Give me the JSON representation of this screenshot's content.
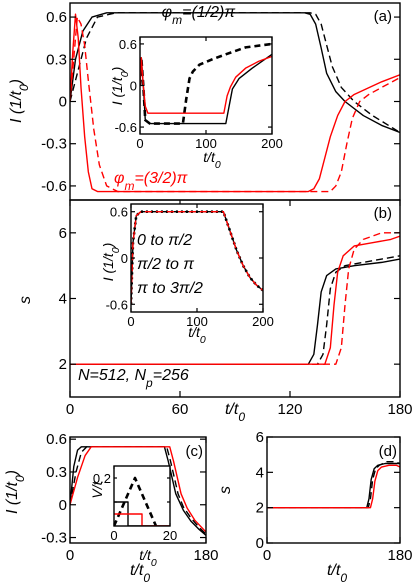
{
  "chart_data": [
    {
      "id": "a",
      "type": "line",
      "panel_label": "(a)",
      "xlim": [
        0,
        180
      ],
      "ylim": [
        -0.7,
        0.7
      ],
      "ylabel": "I (1/t0)",
      "yticks": [
        -0.6,
        -0.3,
        0,
        0.3,
        0.6
      ],
      "ytick_labels": [
        "-0.6",
        "-0.3",
        "0",
        "0.3",
        "0.6"
      ],
      "annotations": [
        {
          "text": "φm=(1/2)π",
          "color": "#000000",
          "x": 50,
          "y": 0.6
        },
        {
          "text": "φm=(3/2)π",
          "color": "#ff0000",
          "x": 24,
          "y": -0.58
        }
      ],
      "series": [
        {
          "color": "#000000",
          "dash": false,
          "x": [
            0,
            3,
            7,
            12,
            20,
            40,
            100,
            128,
            131,
            134,
            137,
            140,
            145,
            150,
            160,
            170,
            180
          ],
          "y": [
            0,
            0.3,
            0.5,
            0.6,
            0.63,
            0.63,
            0.63,
            0.63,
            0.62,
            0.55,
            0.38,
            0.2,
            0.07,
            0,
            -0.1,
            -0.17,
            -0.22
          ]
        },
        {
          "color": "#000000",
          "dash": true,
          "x": [
            0,
            4,
            9,
            15,
            25,
            60,
            100,
            131,
            134,
            137,
            140,
            143,
            148,
            155,
            165,
            180
          ],
          "y": [
            0,
            0.2,
            0.45,
            0.6,
            0.63,
            0.63,
            0.63,
            0.63,
            0.62,
            0.55,
            0.4,
            0.25,
            0.1,
            0,
            -0.1,
            -0.22
          ]
        },
        {
          "color": "#ff0000",
          "dash": false,
          "x": [
            0,
            1.5,
            3,
            4.5,
            6,
            8,
            10,
            12,
            15,
            25,
            60,
            100,
            130,
            133,
            136,
            139,
            142,
            146,
            150,
            155,
            160,
            170,
            180
          ],
          "y": [
            0,
            0.35,
            0.62,
            0.45,
            0.1,
            -0.25,
            -0.5,
            -0.62,
            -0.64,
            -0.64,
            -0.64,
            -0.64,
            -0.64,
            -0.62,
            -0.55,
            -0.4,
            -0.25,
            -0.1,
            0,
            0.05,
            0.08,
            0.14,
            0.19
          ]
        },
        {
          "color": "#ff0000",
          "dash": true,
          "x": [
            0,
            2,
            4,
            6,
            8,
            10,
            13,
            16,
            20,
            26,
            35,
            60,
            100,
            142,
            145,
            148,
            151,
            154,
            158,
            163,
            170,
            180
          ],
          "y": [
            0,
            0.3,
            0.6,
            0.55,
            0.4,
            0.15,
            -0.2,
            -0.45,
            -0.6,
            -0.64,
            -0.64,
            -0.64,
            -0.64,
            -0.64,
            -0.6,
            -0.5,
            -0.3,
            -0.12,
            0,
            0.05,
            0.1,
            0.17
          ]
        }
      ],
      "inset": {
        "xlim": [
          0,
          200
        ],
        "ylim": [
          -0.7,
          0.7
        ],
        "xlabel": "t/t0",
        "ylabel": "I (1/t0)",
        "xticks": [
          0,
          100,
          200
        ],
        "xtick_labels": [
          "0",
          "100",
          "200"
        ],
        "yticks": [
          -0.6,
          0,
          0.6
        ],
        "ytick_labels": [
          "-0.6",
          "0",
          "0.6"
        ],
        "series": [
          {
            "color": "#000000",
            "dash": false,
            "x": [
              0,
              2,
              5,
              8,
              15,
              40,
              100,
              130,
              135,
              140,
              150,
              170,
              200
            ],
            "y": [
              0,
              0.4,
              0.0,
              -0.5,
              -0.55,
              -0.55,
              -0.55,
              -0.55,
              -0.3,
              -0.05,
              0.1,
              0.25,
              0.45
            ]
          },
          {
            "color": "#000000",
            "dash": true,
            "thick": true,
            "x": [
              0,
              2,
              5,
              8,
              15,
              40,
              65,
              70,
              75,
              80,
              90,
              110,
              130,
              160,
              200
            ],
            "y": [
              0,
              0.4,
              0.0,
              -0.5,
              -0.55,
              -0.55,
              -0.55,
              -0.2,
              0.1,
              0.2,
              0.3,
              0.38,
              0.45,
              0.55,
              0.6
            ]
          },
          {
            "color": "#ff0000",
            "dash": false,
            "x": [
              0,
              2,
              5,
              8,
              12,
              40,
              100,
              127,
              132,
              137,
              145,
              160,
              180,
              200
            ],
            "y": [
              0,
              0.4,
              0.0,
              -0.3,
              -0.4,
              -0.4,
              -0.4,
              -0.4,
              -0.15,
              -0.02,
              0.12,
              0.25,
              0.35,
              0.42
            ]
          }
        ]
      }
    },
    {
      "id": "b",
      "type": "line",
      "panel_label": "(b)",
      "xlim": [
        0,
        180
      ],
      "ylim": [
        1,
        7
      ],
      "xlabel": "t/t0",
      "ylabel": "s",
      "xticks": [
        0,
        60,
        120,
        180
      ],
      "xtick_labels": [
        "0",
        "60",
        "120",
        "180"
      ],
      "yticks": [
        2,
        4,
        6
      ],
      "ytick_labels": [
        "2",
        "4",
        "6"
      ],
      "parameters": "N=512, Np=256",
      "series": [
        {
          "color": "#000000",
          "dash": false,
          "x": [
            0,
            130,
            133,
            135,
            137,
            140,
            145,
            155,
            170,
            180
          ],
          "y": [
            2,
            2,
            2.3,
            3.2,
            4.2,
            4.7,
            4.9,
            5,
            5.1,
            5.2
          ]
        },
        {
          "color": "#000000",
          "dash": true,
          "x": [
            0,
            135,
            138,
            140,
            142,
            145,
            150,
            160,
            170,
            180
          ],
          "y": [
            2,
            2,
            2.3,
            3.2,
            4.3,
            4.8,
            5.0,
            5.1,
            5.2,
            5.3
          ]
        },
        {
          "color": "#ff0000",
          "dash": false,
          "x": [
            0,
            139,
            142,
            144,
            146,
            149,
            155,
            165,
            175,
            180
          ],
          "y": [
            2,
            2,
            2.5,
            3.8,
            4.8,
            5.3,
            5.6,
            5.7,
            5.8,
            5.9
          ]
        },
        {
          "color": "#ff0000",
          "dash": true,
          "x": [
            0,
            145,
            148,
            150,
            152,
            155,
            160,
            170,
            180
          ],
          "y": [
            2,
            2,
            2.5,
            3.8,
            4.9,
            5.5,
            5.8,
            6.0,
            6.0
          ]
        }
      ],
      "inset": {
        "xlim": [
          0,
          200
        ],
        "ylim": [
          -0.7,
          0.7
        ],
        "xlabel": "t/t0",
        "ylabel": "I (1/t0)",
        "xticks": [
          0,
          100,
          200
        ],
        "xtick_labels": [
          "0",
          "100",
          "200"
        ],
        "yticks": [
          -0.6,
          0,
          0.6
        ],
        "ytick_labels": [
          "-0.6",
          "0",
          "0.6"
        ],
        "legend_labels": [
          "0 to π/2",
          "π/2 to π",
          "π to 3π/2"
        ],
        "series": [
          {
            "color": "#000000",
            "dash": false,
            "x": [
              0,
              3,
              8,
              15,
              30,
              120,
              140,
              150,
              160,
              170,
              180,
              190,
              200
            ],
            "y": [
              -0.6,
              0.2,
              0.55,
              0.6,
              0.6,
              0.6,
              0.6,
              0.35,
              0.1,
              -0.1,
              -0.25,
              -0.35,
              -0.42
            ]
          },
          {
            "color": "#000000",
            "dash": true,
            "dotted": true,
            "x": [
              0,
              3,
              8,
              15,
              30,
              120,
              140,
              150,
              160,
              170,
              180,
              190,
              200
            ],
            "y": [
              -0.6,
              0.2,
              0.55,
              0.6,
              0.6,
              0.6,
              0.6,
              0.35,
              0.1,
              -0.1,
              -0.25,
              -0.35,
              -0.42
            ]
          },
          {
            "color": "#ff0000",
            "dash": true,
            "x": [
              0,
              3,
              8,
              15,
              30,
              120,
              140,
              150,
              160,
              170,
              180,
              190,
              200
            ],
            "y": [
              -0.6,
              0.2,
              0.55,
              0.6,
              0.6,
              0.6,
              0.6,
              0.35,
              0.1,
              -0.1,
              -0.25,
              -0.35,
              -0.42
            ]
          }
        ]
      }
    },
    {
      "id": "c",
      "type": "line",
      "panel_label": "(c)",
      "xlim": [
        0,
        180
      ],
      "ylim": [
        -0.35,
        0.62
      ],
      "xlabel": "t/t0",
      "ylabel": "I (1/t0)",
      "xticks": [
        0,
        180
      ],
      "xtick_labels": [
        "0",
        "180"
      ],
      "yticks": [
        -0.3,
        0,
        0.3,
        0.6
      ],
      "ytick_labels": [
        "-0.3",
        "0",
        "0.3",
        "0.6"
      ],
      "series": [
        {
          "color": "#000000",
          "dash": false,
          "x": [
            0,
            5,
            10,
            15,
            20,
            40,
            100,
            125,
            130,
            135,
            140,
            150,
            160,
            170,
            180
          ],
          "y": [
            0,
            0.35,
            0.5,
            0.53,
            0.53,
            0.53,
            0.53,
            0.53,
            0.4,
            0.25,
            0.1,
            -0.05,
            -0.15,
            -0.22,
            -0.28
          ]
        },
        {
          "color": "#000000",
          "dash": true,
          "x": [
            0,
            8,
            15,
            22,
            30,
            100,
            128,
            133,
            138,
            143,
            150,
            160,
            170,
            180
          ],
          "y": [
            0,
            0.3,
            0.48,
            0.53,
            0.53,
            0.53,
            0.53,
            0.4,
            0.25,
            0.1,
            -0.02,
            -0.12,
            -0.2,
            -0.27
          ]
        },
        {
          "color": "#ff0000",
          "dash": false,
          "x": [
            0,
            10,
            20,
            28,
            35,
            100,
            132,
            137,
            142,
            147,
            155,
            165,
            180
          ],
          "y": [
            0,
            0.25,
            0.45,
            0.53,
            0.53,
            0.53,
            0.53,
            0.4,
            0.25,
            0.1,
            -0.03,
            -0.14,
            -0.25
          ]
        }
      ],
      "inset": {
        "xlim": [
          0,
          20
        ],
        "ylim": [
          0,
          0.25
        ],
        "xlabel": "t/t0",
        "ylabel": "V/t",
        "xticks": [
          0,
          20
        ],
        "xtick_labels": [
          "0",
          "20"
        ],
        "yticks": [
          0.1,
          0.2
        ],
        "ytick_labels": [
          "",
          "0.2"
        ],
        "series": [
          {
            "color": "#000000",
            "dash": false,
            "x": [
              0,
              5,
              5,
              10,
              10,
              20
            ],
            "y": [
              0.1,
              0.1,
              0.0,
              0.0,
              0.0,
              0.0
            ]
          },
          {
            "color": "#000000",
            "dash": true,
            "thick": true,
            "x": [
              0,
              7.5,
              15
            ],
            "y": [
              0.0,
              0.2,
              0.0
            ]
          },
          {
            "color": "#ff0000",
            "dash": false,
            "x": [
              0,
              10,
              10,
              20
            ],
            "y": [
              0.05,
              0.05,
              0.0,
              0.0
            ]
          }
        ]
      }
    },
    {
      "id": "d",
      "type": "line",
      "panel_label": "(d)",
      "xlim": [
        0,
        180
      ],
      "ylim": [
        0,
        6
      ],
      "xlabel": "t/t0",
      "ylabel": "s",
      "xticks": [
        0,
        180
      ],
      "xtick_labels": [
        "0",
        "180"
      ],
      "yticks": [
        0,
        2,
        4,
        6
      ],
      "ytick_labels": [
        "0",
        "2",
        "4",
        "6"
      ],
      "series": [
        {
          "color": "#000000",
          "dash": false,
          "x": [
            0,
            135,
            138,
            141,
            145,
            150,
            160,
            170,
            180
          ],
          "y": [
            2,
            2,
            2.5,
            3.6,
            4.2,
            4.4,
            4.5,
            4.5,
            4.5
          ]
        },
        {
          "color": "#000000",
          "dash": true,
          "x": [
            0,
            137,
            140,
            143,
            147,
            152,
            162,
            172,
            180
          ],
          "y": [
            2,
            2,
            2.5,
            3.6,
            4.2,
            4.4,
            4.6,
            4.6,
            4.5
          ]
        },
        {
          "color": "#ff0000",
          "dash": false,
          "x": [
            0,
            140,
            143,
            146,
            150,
            155,
            165,
            175,
            180
          ],
          "y": [
            2,
            2,
            2.5,
            3.5,
            4.1,
            4.3,
            4.4,
            4.4,
            4.3
          ]
        }
      ]
    }
  ]
}
